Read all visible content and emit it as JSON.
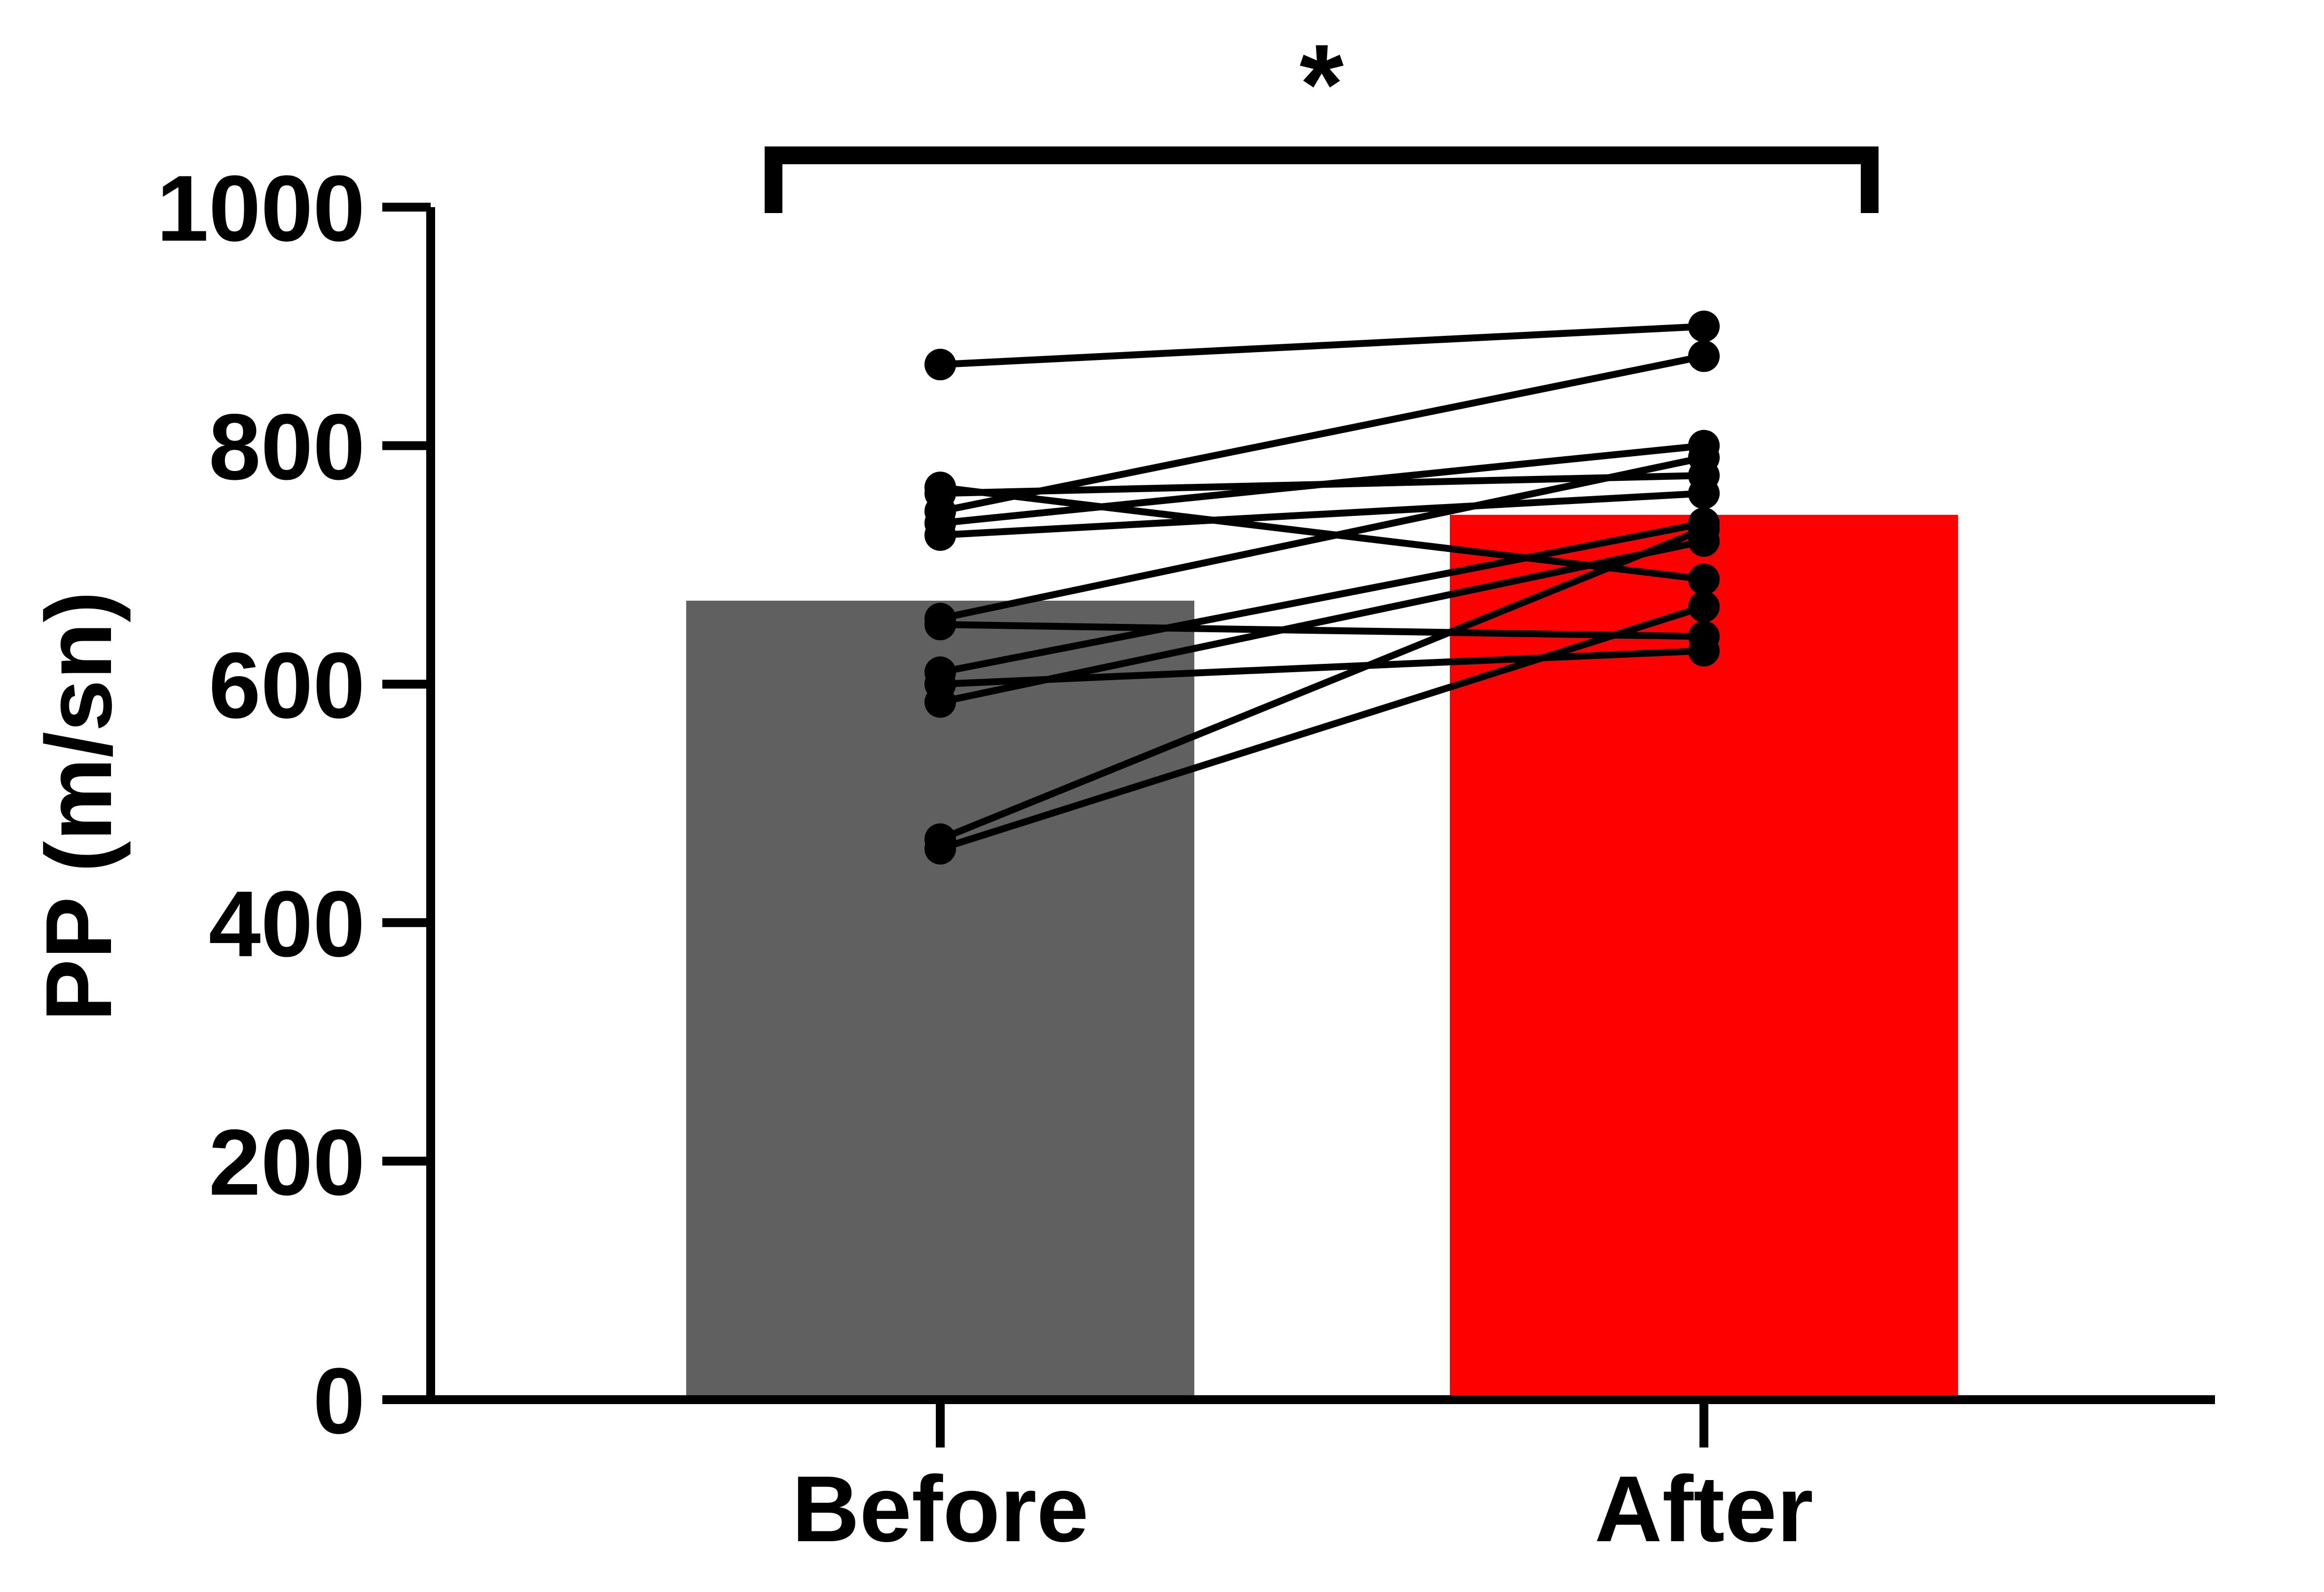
{
  "chart_data": {
    "type": "bar",
    "categories": [
      "Before",
      "After"
    ],
    "values": [
      670,
      742
    ],
    "bar_colors": [
      "#606060",
      "#ff0000"
    ],
    "ylabel": "PP (m/sn)",
    "ylim": [
      0,
      1000
    ],
    "yticks": [
      0,
      200,
      400,
      600,
      800,
      1000
    ],
    "ytick_labels": [
      "0",
      "200",
      "400",
      "600",
      "800",
      "1000"
    ],
    "grid": false,
    "significance": {
      "label": "*",
      "between": [
        "Before",
        "After"
      ]
    },
    "paired_points": [
      [
        868,
        900
      ],
      [
        745,
        875
      ],
      [
        765,
        688
      ],
      [
        760,
        775
      ],
      [
        725,
        760
      ],
      [
        735,
        800
      ],
      [
        655,
        790
      ],
      [
        650,
        640
      ],
      [
        610,
        735
      ],
      [
        600,
        628
      ],
      [
        585,
        720
      ],
      [
        470,
        730
      ],
      [
        462,
        665
      ]
    ]
  }
}
